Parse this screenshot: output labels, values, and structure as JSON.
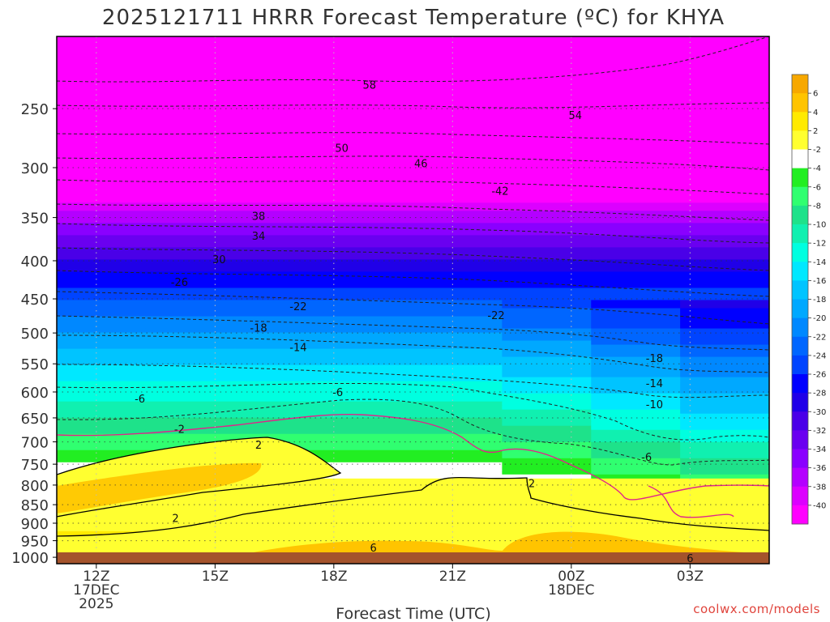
{
  "chart_data": {
    "type": "heatmap",
    "title": "2025121711 HRRR Forecast Temperature (ºC) for KHYA",
    "xlabel": "Forecast Time (UTC)",
    "ylabel": "",
    "credit": "coolwx.com/models",
    "y_scale": "log-pressure",
    "y_range_hPa": [
      1020,
      200
    ],
    "x_range_hours_after_11Z_17DEC2025": [
      0,
      18
    ],
    "grid": "dotted",
    "legend": "right",
    "x_ticks": [
      {
        "hour": 1,
        "lines": [
          "12Z",
          "17DEC",
          "2025"
        ]
      },
      {
        "hour": 4,
        "lines": [
          "15Z"
        ]
      },
      {
        "hour": 7,
        "lines": [
          "18Z"
        ]
      },
      {
        "hour": 10,
        "lines": [
          "21Z"
        ]
      },
      {
        "hour": 13,
        "lines": [
          "00Z",
          "18DEC"
        ]
      },
      {
        "hour": 16,
        "lines": [
          "03Z"
        ]
      }
    ],
    "y_ticks": [
      250,
      300,
      350,
      400,
      450,
      500,
      550,
      600,
      650,
      700,
      750,
      800,
      850,
      900,
      950,
      1000
    ],
    "colorbar": {
      "labels": [
        "6",
        "4",
        "2",
        "-2",
        "-4",
        "-6",
        "-8",
        "-10",
        "-12",
        "-14",
        "-16",
        "-18",
        "-20",
        "-22",
        "-24",
        "-26",
        "-28",
        "-30",
        "-32",
        "-34",
        "-36",
        "-38",
        "-40"
      ],
      "colors": [
        "#f7a800",
        "#ffc400",
        "#ffea00",
        "#ffff30",
        "#ffffff",
        "#22ee22",
        "#30ff70",
        "#1ee28a",
        "#10f0b0",
        "#00ffe0",
        "#00e8ff",
        "#00c4ff",
        "#00a8ff",
        "#0088ff",
        "#0066ff",
        "#0044ff",
        "#0000ff",
        "#2000e8",
        "#4a00e8",
        "#6a00f0",
        "#8a00ff",
        "#b400ff",
        "#dc00ff",
        "#ff00ff"
      ]
    },
    "temperature_profile": [
      {
        "hPa": 1000,
        "t": 5
      },
      {
        "hPa": 950,
        "t": 3
      },
      {
        "hPa": 900,
        "t": 1
      },
      {
        "hPa": 850,
        "t": 0
      },
      {
        "hPa": 800,
        "t": -1
      },
      {
        "hPa": 750,
        "t": -4
      },
      {
        "hPa": 700,
        "t": -7
      },
      {
        "hPa": 650,
        "t": -10
      },
      {
        "hPa": 600,
        "t": -13
      },
      {
        "hPa": 550,
        "t": -16
      },
      {
        "hPa": 500,
        "t": -20
      },
      {
        "hPa": 450,
        "t": -24
      },
      {
        "hPa": 400,
        "t": -30
      },
      {
        "hPa": 350,
        "t": -37
      },
      {
        "hPa": 300,
        "t": -46
      },
      {
        "hPa": 250,
        "t": -54
      },
      {
        "hPa": 230,
        "t": -58
      }
    ],
    "contour_labels": [
      {
        "text": "58",
        "hour": 7.9,
        "hPa": 232
      },
      {
        "text": "54",
        "hour": 13.1,
        "hPa": 255
      },
      {
        "text": "50",
        "hour": 7.2,
        "hPa": 282
      },
      {
        "text": "46",
        "hour": 9.2,
        "hPa": 296
      },
      {
        "text": "-42",
        "hour": 11.2,
        "hPa": 322
      },
      {
        "text": "38",
        "hour": 5.1,
        "hPa": 348
      },
      {
        "text": "34",
        "hour": 5.1,
        "hPa": 370
      },
      {
        "text": "30",
        "hour": 4.1,
        "hPa": 398
      },
      {
        "text": "-26",
        "hour": 3.1,
        "hPa": 427
      },
      {
        "text": "-22",
        "hour": 6.1,
        "hPa": 460
      },
      {
        "text": "-22",
        "hour": 11.1,
        "hPa": 473
      },
      {
        "text": "-18",
        "hour": 5.1,
        "hPa": 492
      },
      {
        "text": "-14",
        "hour": 6.1,
        "hPa": 522
      },
      {
        "text": "-18",
        "hour": 15.1,
        "hPa": 540
      },
      {
        "text": "-14",
        "hour": 15.1,
        "hPa": 584
      },
      {
        "text": "-6",
        "hour": 2.1,
        "hPa": 612
      },
      {
        "text": "-6",
        "hour": 7.1,
        "hPa": 600
      },
      {
        "text": "-10",
        "hour": 15.1,
        "hPa": 623
      },
      {
        "text": "-2",
        "hour": 3.1,
        "hPa": 672
      },
      {
        "text": "-6",
        "hour": 14.9,
        "hPa": 733
      },
      {
        "text": "2",
        "hour": 5.1,
        "hPa": 706
      },
      {
        "text": "2",
        "hour": 3.0,
        "hPa": 885
      },
      {
        "text": "2",
        "hour": 12.0,
        "hPa": 795
      },
      {
        "text": "6",
        "hour": 8.0,
        "hPa": 970
      },
      {
        "text": "6",
        "hour": 16.0,
        "hPa": 1002
      }
    ]
  }
}
